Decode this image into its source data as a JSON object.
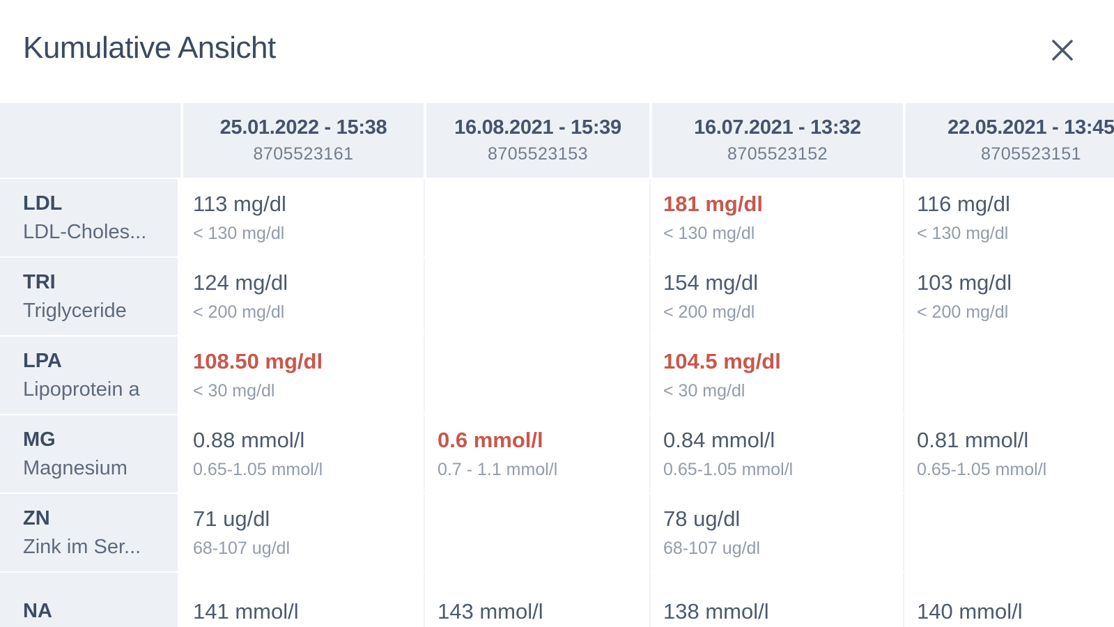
{
  "modal": {
    "title": "Kumulative Ansicht"
  },
  "icons": {
    "close": "close-icon"
  },
  "colors": {
    "abnormal_value": "#c9574b",
    "header_background": "#edf1f6",
    "normal_text": "#4d5a6c",
    "reference_text": "#939ca8"
  },
  "table": {
    "columns": [
      {
        "date": "25.01.2022 - 15:38",
        "sample_id": "8705523161"
      },
      {
        "date": "16.08.2021 - 15:39",
        "sample_id": "8705523153"
      },
      {
        "date": "16.07.2021 - 13:32",
        "sample_id": "8705523152"
      },
      {
        "date": "22.05.2021 - 13:45",
        "sample_id": "8705523151"
      }
    ],
    "rows": [
      {
        "code": "LDL",
        "name": "LDL-Choles...",
        "cells": [
          {
            "value": "113 mg/dl",
            "reference": "< 130 mg/dl",
            "abnormal": false
          },
          null,
          {
            "value": "181 mg/dl",
            "reference": "< 130 mg/dl",
            "abnormal": true
          },
          {
            "value": "116 mg/dl",
            "reference": "< 130 mg/dl",
            "abnormal": false
          }
        ]
      },
      {
        "code": "TRI",
        "name": "Triglyceride",
        "cells": [
          {
            "value": "124 mg/dl",
            "reference": "< 200 mg/dl",
            "abnormal": false
          },
          null,
          {
            "value": "154 mg/dl",
            "reference": "< 200 mg/dl",
            "abnormal": false
          },
          {
            "value": "103 mg/dl",
            "reference": "< 200 mg/dl",
            "abnormal": false
          }
        ]
      },
      {
        "code": "LPA",
        "name": "Lipoprotein a",
        "cells": [
          {
            "value": "108.50 mg/dl",
            "reference": "< 30 mg/dl",
            "abnormal": true
          },
          null,
          {
            "value": "104.5 mg/dl",
            "reference": "< 30 mg/dl",
            "abnormal": true
          },
          null
        ]
      },
      {
        "code": "MG",
        "name": "Magnesium",
        "cells": [
          {
            "value": "0.88 mmol/l",
            "reference": "0.65-1.05 mmol/l",
            "abnormal": false
          },
          {
            "value": "0.6 mmol/l",
            "reference": "0.7 - 1.1 mmol/l",
            "abnormal": true
          },
          {
            "value": "0.84 mmol/l",
            "reference": "0.65-1.05 mmol/l",
            "abnormal": false
          },
          {
            "value": "0.81 mmol/l",
            "reference": "0.65-1.05 mmol/l",
            "abnormal": false
          }
        ]
      },
      {
        "code": "ZN",
        "name": "Zink im Ser...",
        "cells": [
          {
            "value": "71 ug/dl",
            "reference": "68-107 ug/dl",
            "abnormal": false
          },
          null,
          {
            "value": "78 ug/dl",
            "reference": "68-107 ug/dl",
            "abnormal": false
          },
          null
        ]
      },
      {
        "code": "NA",
        "name": "",
        "cells": [
          {
            "value": "141 mmol/l",
            "reference": "",
            "abnormal": false
          },
          {
            "value": "143 mmol/l",
            "reference": "",
            "abnormal": false
          },
          {
            "value": "138 mmol/l",
            "reference": "",
            "abnormal": false
          },
          {
            "value": "140 mmol/l",
            "reference": "",
            "abnormal": false
          }
        ]
      }
    ]
  }
}
